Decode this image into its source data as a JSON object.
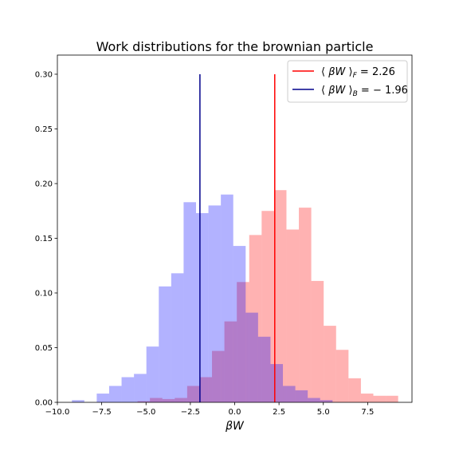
{
  "chart_data": {
    "type": "bar",
    "title": "Work distributions for the brownian particle",
    "xlabel": "βW",
    "ylabel": "",
    "xlim": [
      -10.0,
      10.0
    ],
    "ylim": [
      0.0,
      0.3175
    ],
    "xticks": [
      -10.0,
      -7.5,
      -5.0,
      -2.5,
      0.0,
      2.5,
      5.0,
      7.5
    ],
    "xtick_labels": [
      "−10.0",
      "−7.5",
      "−5.0",
      "−2.5",
      "0.0",
      "2.5",
      "5.0",
      "7.5"
    ],
    "yticks": [
      0.0,
      0.05,
      0.1,
      0.15,
      0.2,
      0.25,
      0.3
    ],
    "ytick_labels": [
      "0.00",
      "0.05",
      "0.10",
      "0.15",
      "0.20",
      "0.25",
      "0.30"
    ],
    "legend_position": "top-right",
    "series": [
      {
        "kind": "histogram",
        "color": "#ff0000",
        "alpha": 0.3,
        "bins": [
          {
            "x0": -5.48,
            "x1": -4.78,
            "value": 0.001
          },
          {
            "x0": -4.78,
            "x1": -4.08,
            "value": 0.004
          },
          {
            "x0": -4.08,
            "x1": -3.38,
            "value": 0.003
          },
          {
            "x0": -3.38,
            "x1": -2.68,
            "value": 0.004
          },
          {
            "x0": -2.68,
            "x1": -1.98,
            "value": 0.015
          },
          {
            "x0": -1.98,
            "x1": -1.28,
            "value": 0.023
          },
          {
            "x0": -1.28,
            "x1": -0.58,
            "value": 0.047
          },
          {
            "x0": -0.58,
            "x1": 0.12,
            "value": 0.074
          },
          {
            "x0": 0.12,
            "x1": 0.82,
            "value": 0.11
          },
          {
            "x0": 0.82,
            "x1": 1.52,
            "value": 0.153
          },
          {
            "x0": 1.52,
            "x1": 2.22,
            "value": 0.175
          },
          {
            "x0": 2.22,
            "x1": 2.92,
            "value": 0.194
          },
          {
            "x0": 2.92,
            "x1": 3.62,
            "value": 0.158
          },
          {
            "x0": 3.62,
            "x1": 4.32,
            "value": 0.178
          },
          {
            "x0": 4.32,
            "x1": 5.02,
            "value": 0.111
          },
          {
            "x0": 5.02,
            "x1": 5.72,
            "value": 0.07
          },
          {
            "x0": 5.72,
            "x1": 6.42,
            "value": 0.048
          },
          {
            "x0": 6.42,
            "x1": 7.12,
            "value": 0.022
          },
          {
            "x0": 7.12,
            "x1": 7.82,
            "value": 0.008
          },
          {
            "x0": 7.82,
            "x1": 8.52,
            "value": 0.006
          },
          {
            "x0": 8.52,
            "x1": 9.22,
            "value": 0.006
          }
        ]
      },
      {
        "kind": "histogram",
        "color": "#0000ff",
        "alpha": 0.3,
        "bins": [
          {
            "x0": -9.18,
            "x1": -8.48,
            "value": 0.002
          },
          {
            "x0": -8.48,
            "x1": -7.78,
            "value": 0.0
          },
          {
            "x0": -7.78,
            "x1": -7.08,
            "value": 0.008
          },
          {
            "x0": -7.08,
            "x1": -6.38,
            "value": 0.015
          },
          {
            "x0": -6.38,
            "x1": -5.68,
            "value": 0.023
          },
          {
            "x0": -5.68,
            "x1": -4.98,
            "value": 0.026
          },
          {
            "x0": -4.98,
            "x1": -4.28,
            "value": 0.051
          },
          {
            "x0": -4.28,
            "x1": -3.58,
            "value": 0.106
          },
          {
            "x0": -3.58,
            "x1": -2.88,
            "value": 0.118
          },
          {
            "x0": -2.88,
            "x1": -2.18,
            "value": 0.183
          },
          {
            "x0": -2.18,
            "x1": -1.48,
            "value": 0.173
          },
          {
            "x0": -1.48,
            "x1": -0.78,
            "value": 0.18
          },
          {
            "x0": -0.78,
            "x1": -0.08,
            "value": 0.19
          },
          {
            "x0": -0.08,
            "x1": 0.62,
            "value": 0.143
          },
          {
            "x0": 0.62,
            "x1": 1.32,
            "value": 0.082
          },
          {
            "x0": 1.32,
            "x1": 2.02,
            "value": 0.06
          },
          {
            "x0": 2.02,
            "x1": 2.72,
            "value": 0.035
          },
          {
            "x0": 2.72,
            "x1": 3.42,
            "value": 0.015
          },
          {
            "x0": 3.42,
            "x1": 4.12,
            "value": 0.011
          },
          {
            "x0": 4.12,
            "x1": 4.82,
            "value": 0.004
          },
          {
            "x0": 4.82,
            "x1": 5.52,
            "value": 0.002
          }
        ]
      }
    ],
    "vlines": [
      {
        "x": 2.26,
        "y0": 0.0,
        "y1": 0.3,
        "color": "#ff0000",
        "legend": "⟨ βW ⟩_F = 2.26"
      },
      {
        "x": -1.96,
        "y0": 0.0,
        "y1": 0.3,
        "color": "#00008b",
        "legend": "⟨ βW ⟩_B = − 1.96"
      }
    ]
  }
}
